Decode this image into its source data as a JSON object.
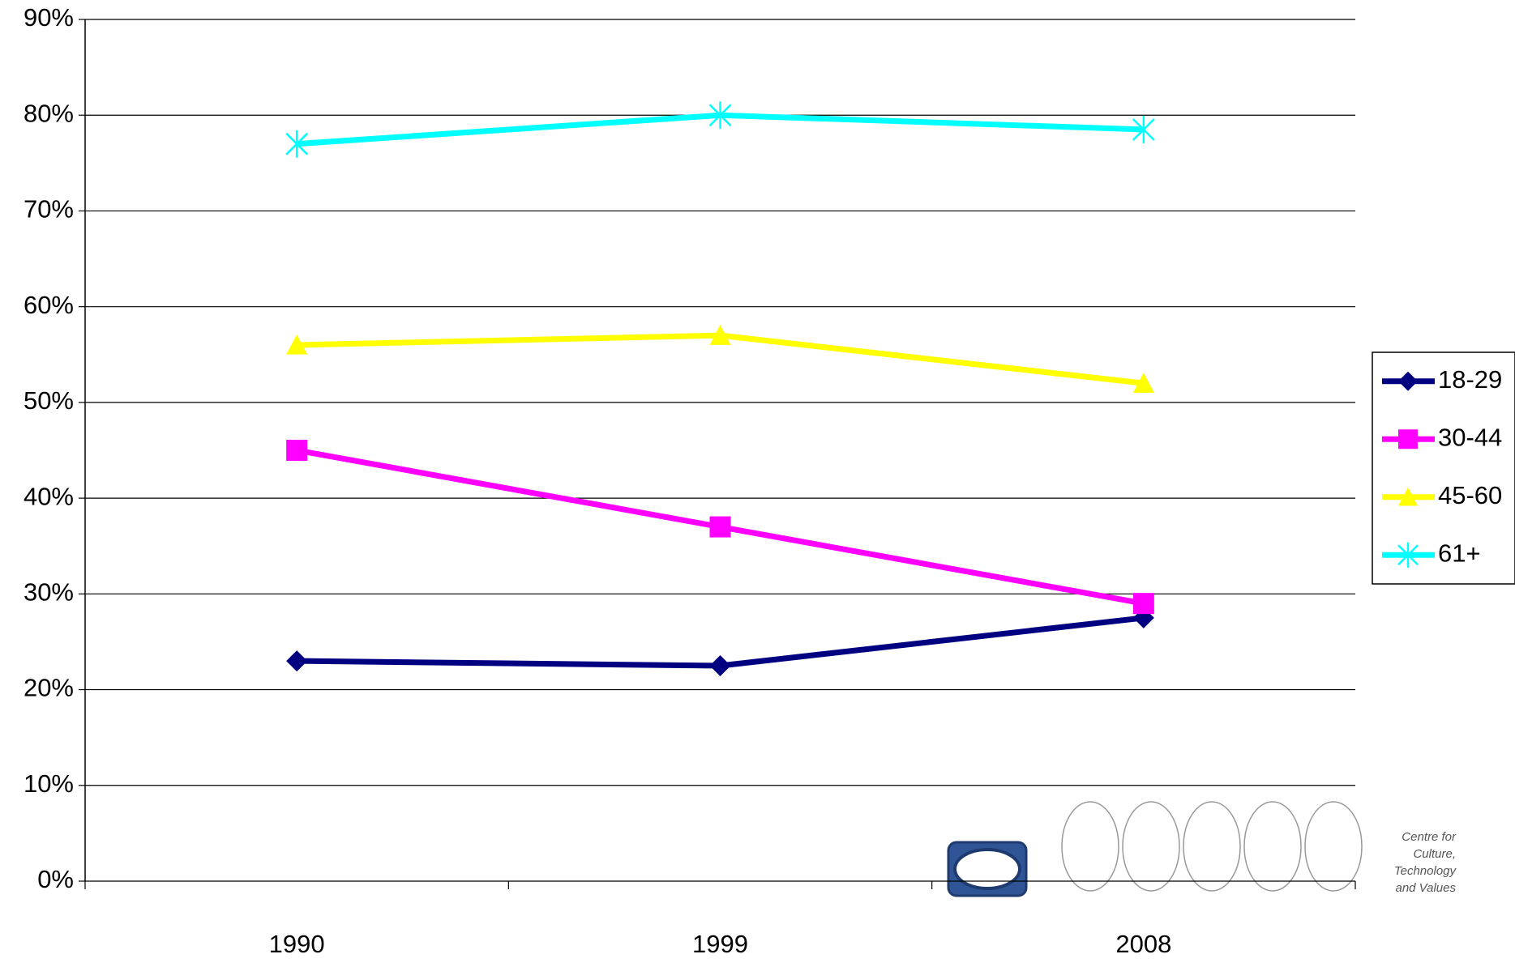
{
  "chart_data": {
    "type": "line",
    "categories": [
      "1990",
      "1999",
      "2008"
    ],
    "series": [
      {
        "name": "18-29",
        "color": "#000080",
        "marker": "diamond",
        "values": [
          23,
          22.5,
          27.5
        ]
      },
      {
        "name": "30-44",
        "color": "#ff00ff",
        "marker": "square",
        "values": [
          45,
          37,
          29
        ]
      },
      {
        "name": "45-60",
        "color": "#ffff00",
        "marker": "triangle",
        "values": [
          56,
          57,
          52
        ]
      },
      {
        "name": "61+",
        "color": "#00ffff",
        "marker": "x",
        "values": [
          77,
          80,
          78.5
        ]
      }
    ],
    "ylim": [
      0,
      90
    ],
    "yticks": [
      {
        "value": 0,
        "label": "0%"
      },
      {
        "value": 10,
        "label": "10%"
      },
      {
        "value": 20,
        "label": "20%"
      },
      {
        "value": 30,
        "label": "30%"
      },
      {
        "value": 40,
        "label": "40%"
      },
      {
        "value": 50,
        "label": "50%"
      },
      {
        "value": 60,
        "label": "60%"
      },
      {
        "value": 70,
        "label": "70%"
      },
      {
        "value": 80,
        "label": "80%"
      },
      {
        "value": 90,
        "label": "90%"
      }
    ],
    "grid": true,
    "legend": "right"
  },
  "logo": {
    "lines": [
      "Centre for",
      "Culture,",
      "Technology",
      "and Values"
    ]
  }
}
